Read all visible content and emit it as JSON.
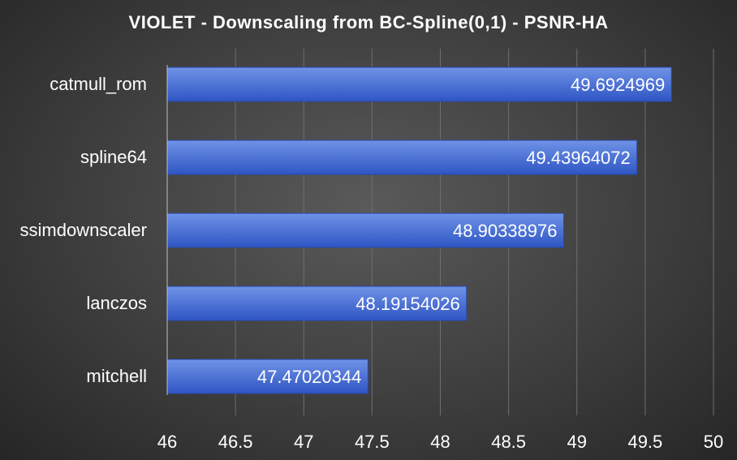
{
  "chart_data": {
    "type": "bar",
    "orientation": "horizontal",
    "title": "VIOLET  - Downscaling from BC-Spline(0,1)  - PSNR-HA",
    "categories": [
      "catmull_rom",
      "spline64",
      "ssimdownscaler",
      "lanczos",
      "mitchell"
    ],
    "values": [
      49.6924969,
      49.43964072,
      48.90338976,
      48.19154026,
      47.47020344
    ],
    "data_labels": [
      "49.6924969",
      "49.43964072",
      "48.90338976",
      "48.19154026",
      "47.47020344"
    ],
    "xlim": [
      46,
      50
    ],
    "x_ticks": [
      "46",
      "46.5",
      "47",
      "47.5",
      "48",
      "48.5",
      "49",
      "49.5",
      "50"
    ],
    "x_tick_values": [
      46,
      46.5,
      47,
      47.5,
      48,
      48.5,
      49,
      49.5,
      50
    ],
    "xlabel": "",
    "ylabel": "",
    "grid": true,
    "legend": "none",
    "colors": {
      "bar_top": "#6f93e6",
      "bar_bottom": "#2f55c4",
      "bar_edge": "#2a4aa8"
    }
  }
}
